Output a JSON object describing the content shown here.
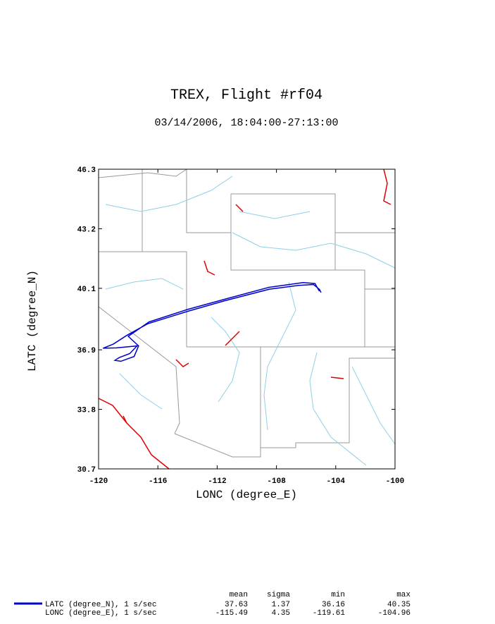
{
  "chart_data": {
    "type": "line",
    "title": "TREX, Flight #rf04",
    "subtitle": "03/14/2006, 18:04:00-27:13:00",
    "x_label": "LONC (degree_E)",
    "y_label": "LATC (degree_N)",
    "xlim": [
      -120,
      -100
    ],
    "xticks": [
      -120,
      -116,
      -112,
      -108,
      -104,
      -100
    ],
    "ylim": [
      30.7,
      46.3
    ],
    "yticks": [
      30.7,
      33.8,
      36.9,
      40.1,
      43.2,
      46.3
    ],
    "series": [
      {
        "name": "LATC (degree_N), 1 s/sec",
        "color": "#0000cc",
        "x": [
          -104.99,
          -105.1,
          -105.5,
          -106.5,
          -108.5,
          -111.5,
          -114,
          -116.7,
          -118.1,
          -119.0,
          -119.7,
          -118.8,
          -117.4,
          -117.9,
          -118.6,
          -118.9,
          -118.5,
          -117.6,
          -117.3,
          -118.0,
          -116.6,
          -114,
          -111.4,
          -108.5,
          -106.2,
          -105.4,
          -105.1
        ],
        "y": [
          39.88,
          40.05,
          40.3,
          40.25,
          40.05,
          39.45,
          38.9,
          38.25,
          37.65,
          37.2,
          36.98,
          37.0,
          37.1,
          36.7,
          36.5,
          36.35,
          36.3,
          36.55,
          37.1,
          37.6,
          38.35,
          39.0,
          39.55,
          40.15,
          40.4,
          40.35,
          39.95
        ]
      }
    ],
    "stats": {
      "columns": [
        "mean",
        "sigma",
        "min",
        "max"
      ],
      "rows": [
        {
          "label": "LATC (degree_N), 1 s/sec",
          "values": [
            37.63,
            1.37,
            36.16,
            40.35
          ]
        },
        {
          "label": "LONC (degree_E), 1 s/sec",
          "values": [
            -115.49,
            4.35,
            -119.61,
            -104.96
          ]
        }
      ]
    }
  }
}
